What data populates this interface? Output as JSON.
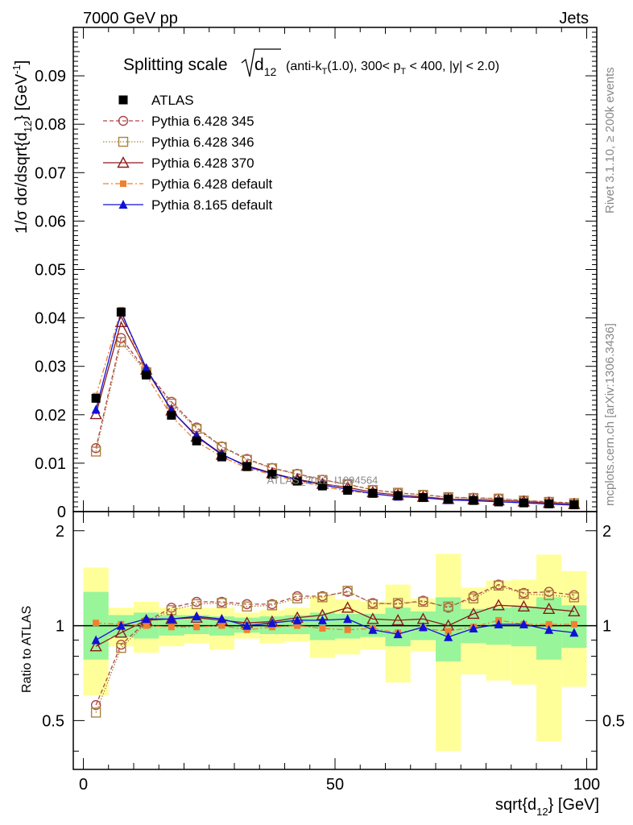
{
  "header": {
    "left": "7000 GeV pp",
    "right": "Jets"
  },
  "side_labels": {
    "rivet": "Rivet 3.1.10, ≥ 200k events",
    "mcplots": "mcplots.cern.ch [arXiv:1306.3436]"
  },
  "chart_data": {
    "type": "line",
    "title": "Splitting scale √d12 (anti-kT(1.0), 300< pT < 400, |y| < 2.0)",
    "title_main": "Splitting scale",
    "title_sub": "(anti-k",
    "title_sub_T": "T",
    "title_sub_mid": "(1.0), 300< p",
    "title_sub_T2": "T",
    "title_sub_end": " < 400, |y| < 2.0)",
    "title_d": "d",
    "title_d_sub": "12",
    "watermark": "ATLAS_2012_I1094564",
    "xlabel": "sqrt{d",
    "xlabel_sub": "12",
    "xlabel_end": "} [GeV]",
    "ylabel": "1/σ dσ/dsqrt{d",
    "ylabel_sub": "12",
    "ylabel_mid": "} [GeV",
    "ylabel_sup": "-1",
    "ylabel_end": "]",
    "ratio_ylabel": "Ratio to ATLAS",
    "xlim": [
      -2,
      102
    ],
    "ylim": [
      0,
      0.1
    ],
    "ratio_ylim": [
      0.35,
      2.3
    ],
    "x_ticks": [
      0,
      50,
      100
    ],
    "x_tick_labels": [
      "0",
      "50",
      "100"
    ],
    "y_ticks": [
      0,
      0.01,
      0.02,
      0.03,
      0.04,
      0.05,
      0.06,
      0.07,
      0.08,
      0.09
    ],
    "y_tick_labels": [
      "0",
      "0.01",
      "0.02",
      "0.03",
      "0.04",
      "0.05",
      "0.06",
      "0.07",
      "0.08",
      "0.09"
    ],
    "ratio_y_ticks": [
      0.5,
      1,
      2
    ],
    "ratio_y_tick_labels": [
      "0.5",
      "1",
      "2"
    ],
    "x": [
      2.5,
      7.5,
      12.5,
      17.5,
      22.5,
      27.5,
      32.5,
      37.5,
      42.5,
      47.5,
      52.5,
      57.5,
      62.5,
      67.5,
      72.5,
      77.5,
      82.5,
      87.5,
      92.5,
      97.5
    ],
    "bin_edges": [
      0,
      5,
      10,
      15,
      20,
      25,
      30,
      35,
      40,
      45,
      50,
      55,
      60,
      65,
      70,
      75,
      80,
      85,
      90,
      95,
      100
    ],
    "atlas": [
      0.0234,
      0.0412,
      0.0282,
      0.0199,
      0.0146,
      0.0113,
      0.0093,
      0.0077,
      0.0063,
      0.0053,
      0.0044,
      0.0038,
      0.0033,
      0.0029,
      0.0026,
      0.0023,
      0.002,
      0.0018,
      0.0016,
      0.0014
    ],
    "band_inner": [
      [
        0.78,
        1.28
      ],
      [
        0.92,
        1.08
      ],
      [
        0.91,
        1.1
      ],
      [
        0.93,
        1.08
      ],
      [
        0.94,
        1.08
      ],
      [
        0.93,
        1.07
      ],
      [
        0.95,
        1.06
      ],
      [
        0.94,
        1.07
      ],
      [
        0.94,
        1.08
      ],
      [
        0.9,
        1.1
      ],
      [
        0.91,
        1.09
      ],
      [
        0.92,
        1.09
      ],
      [
        0.86,
        1.14
      ],
      [
        0.9,
        1.11
      ],
      [
        0.77,
        1.23
      ],
      [
        0.88,
        1.13
      ],
      [
        0.87,
        1.14
      ],
      [
        0.86,
        1.15
      ],
      [
        0.78,
        1.23
      ],
      [
        0.85,
        1.16
      ]
    ],
    "band_outer": [
      [
        0.6,
        1.53
      ],
      [
        0.86,
        1.14
      ],
      [
        0.82,
        1.19
      ],
      [
        0.86,
        1.14
      ],
      [
        0.88,
        1.14
      ],
      [
        0.84,
        1.14
      ],
      [
        0.91,
        1.1
      ],
      [
        0.88,
        1.12
      ],
      [
        0.89,
        1.14
      ],
      [
        0.79,
        1.24
      ],
      [
        0.81,
        1.21
      ],
      [
        0.84,
        1.19
      ],
      [
        0.66,
        1.35
      ],
      [
        0.83,
        1.22
      ],
      [
        0.4,
        1.69
      ],
      [
        0.7,
        1.32
      ],
      [
        0.67,
        1.39
      ],
      [
        0.65,
        1.4
      ],
      [
        0.43,
        1.68
      ],
      [
        0.64,
        1.49
      ]
    ],
    "legend": {
      "atlas": "ATLAS",
      "entries": [
        "Pythia 6.428 345",
        "Pythia 6.428 346",
        "Pythia 6.428 370",
        "Pythia 6.428 default",
        "Pythia 8.165 default"
      ]
    },
    "series": [
      {
        "name": "Pythia 6.428 345",
        "color": "#b0464a",
        "dash": "5,3",
        "marker": "circle-open",
        "ratio": [
          0.56,
          0.87,
          1.03,
          1.14,
          1.19,
          1.19,
          1.17,
          1.17,
          1.24,
          1.24,
          1.28,
          1.18,
          1.17,
          1.2,
          1.14,
          1.24,
          1.35,
          1.27,
          1.28,
          1.25
        ]
      },
      {
        "name": "Pythia 6.428 346",
        "color": "#a8843c",
        "dash": "1.5,2",
        "marker": "square-open",
        "ratio": [
          0.53,
          0.85,
          1.02,
          1.12,
          1.17,
          1.18,
          1.15,
          1.16,
          1.22,
          1.23,
          1.29,
          1.17,
          1.18,
          1.19,
          1.15,
          1.22,
          1.34,
          1.26,
          1.25,
          1.23
        ]
      },
      {
        "name": "Pythia 6.428 370",
        "color": "#8b1a1a",
        "dash": "",
        "marker": "triangle-open",
        "ratio": [
          0.86,
          0.95,
          1.04,
          1.05,
          1.06,
          1.04,
          1.02,
          1.03,
          1.06,
          1.08,
          1.14,
          1.05,
          1.04,
          1.05,
          1.0,
          1.09,
          1.16,
          1.15,
          1.13,
          1.11
        ]
      },
      {
        "name": "Pythia 6.428 default",
        "color": "#f08030",
        "dash": "7,3,2,3",
        "marker": "square-filled",
        "ratio": [
          1.02,
          1.01,
          1.0,
          0.99,
          0.99,
          1.0,
          0.97,
          0.99,
          1.0,
          0.98,
          0.97,
          0.98,
          0.95,
          0.98,
          0.96,
          0.99,
          1.04,
          1.01,
          1.01,
          1.01
        ]
      },
      {
        "name": "Pythia 8.165 default",
        "color": "#1010d8",
        "dash": "",
        "marker": "triangle-filled",
        "ratio": [
          0.9,
          1.0,
          1.05,
          1.05,
          1.07,
          1.05,
          1.0,
          1.02,
          1.04,
          1.04,
          1.05,
          0.97,
          0.94,
          0.99,
          0.92,
          0.98,
          1.01,
          1.01,
          0.97,
          0.95
        ]
      }
    ]
  }
}
